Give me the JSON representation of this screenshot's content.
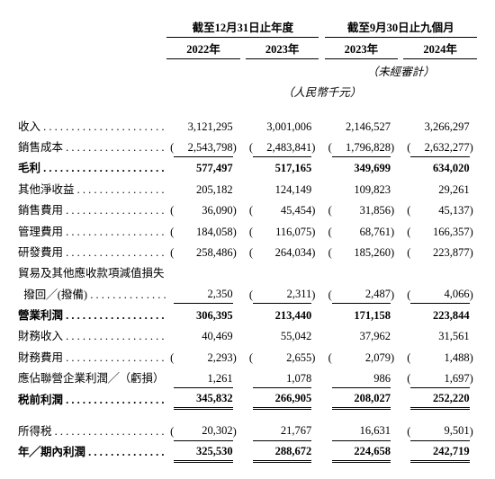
{
  "headers": {
    "group1": "截至12月31日止年度",
    "group2": "截至9月30日止九個月",
    "y1": "2022年",
    "y2": "2023年",
    "y3": "2023年",
    "y4": "2024年",
    "unaudited": "（未經審計）",
    "unit": "（人民幣千元）"
  },
  "rows": [
    {
      "label": "收入",
      "v": [
        "3,121,295",
        "3,001,006",
        "2,146,527",
        "3,266,297"
      ],
      "neg": [
        0,
        0,
        0,
        0
      ]
    },
    {
      "label": "銷售成本",
      "v": [
        "2,543,798",
        "2,483,841",
        "1,796,828",
        "2,632,277"
      ],
      "neg": [
        1,
        1,
        1,
        1
      ],
      "rule": "sum1"
    },
    {
      "label": "毛利",
      "v": [
        "577,497",
        "517,165",
        "349,699",
        "634,020"
      ],
      "neg": [
        0,
        0,
        0,
        0
      ],
      "bold": 1,
      "rule": "sum1top"
    },
    {
      "label": "其他淨收益",
      "v": [
        "205,182",
        "124,149",
        "109,823",
        "29,261"
      ],
      "neg": [
        0,
        0,
        0,
        0
      ]
    },
    {
      "label": "銷售費用",
      "v": [
        "36,090",
        "45,454",
        "31,856",
        "45,137"
      ],
      "neg": [
        1,
        1,
        1,
        1
      ]
    },
    {
      "label": "管理費用",
      "v": [
        "184,058",
        "116,075",
        "68,761",
        "166,357"
      ],
      "neg": [
        1,
        1,
        1,
        1
      ]
    },
    {
      "label": "研發費用",
      "v": [
        "258,486",
        "264,034",
        "185,260",
        "223,877"
      ],
      "neg": [
        1,
        1,
        1,
        1
      ]
    },
    {
      "label2": "貿易及其他應收款項減值損失",
      "label": "撥回╱(撥備)",
      "indent": 1,
      "v": [
        "2,350",
        "2,311",
        "2,487",
        "4,066"
      ],
      "neg": [
        0,
        1,
        1,
        1
      ],
      "rule": "sum1"
    },
    {
      "label": "營業利潤",
      "v": [
        "306,395",
        "213,440",
        "171,158",
        "223,844"
      ],
      "neg": [
        0,
        0,
        0,
        0
      ],
      "bold": 1,
      "rule": "sum1top"
    },
    {
      "label": "財務收入",
      "v": [
        "40,469",
        "55,042",
        "37,962",
        "31,561"
      ],
      "neg": [
        0,
        0,
        0,
        0
      ]
    },
    {
      "label": "財務費用",
      "v": [
        "2,293",
        "2,655",
        "2,079",
        "1,488"
      ],
      "neg": [
        1,
        1,
        1,
        1
      ]
    },
    {
      "label": "應佔聯營企業利潤╱（虧損）",
      "v": [
        "1,261",
        "1,078",
        "986",
        "1,697"
      ],
      "neg": [
        0,
        0,
        0,
        1
      ],
      "rule": "sum1"
    },
    {
      "label": "税前利潤",
      "v": [
        "345,832",
        "266,905",
        "208,027",
        "252,220"
      ],
      "neg": [
        0,
        0,
        0,
        0
      ],
      "bold": 1,
      "rule": "sum2top"
    },
    {
      "label": "所得税",
      "v": [
        "20,302",
        "21,767",
        "16,631",
        "9,501"
      ],
      "neg": [
        1,
        0,
        0,
        1
      ],
      "rule": "sum1",
      "pre_gap": 1
    },
    {
      "label": "年╱期內利潤",
      "v": [
        "325,530",
        "288,672",
        "224,658",
        "242,719"
      ],
      "neg": [
        0,
        0,
        0,
        0
      ],
      "bold": 1,
      "rule": "sum2top"
    }
  ]
}
